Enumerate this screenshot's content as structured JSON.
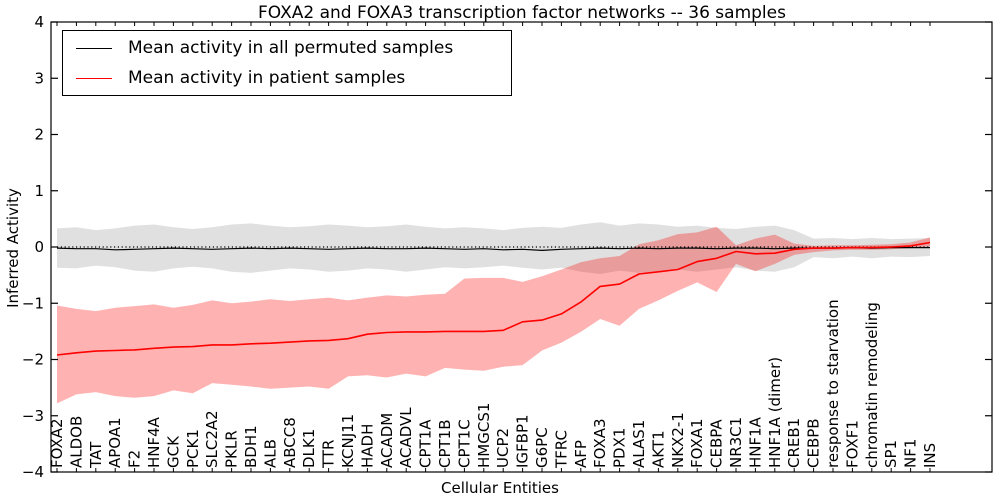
{
  "title": "FOXA2 and FOXA3 transcription factor networks -- 36 samples",
  "legend": {
    "entries": [
      {
        "label": "Mean activity in all permuted samples",
        "color": "#000000"
      },
      {
        "label": "Mean activity in patient samples",
        "color": "#ff0000"
      }
    ]
  },
  "chart_data": {
    "type": "line",
    "title": "FOXA2 and FOXA3 transcription factor networks -- 36 samples",
    "xlabel": "Cellular Entities",
    "ylabel": "Inferred Activity",
    "ylim": [
      -4,
      4
    ],
    "yticks": [
      4,
      3,
      2,
      1,
      0,
      -1,
      -2,
      -3,
      -4
    ],
    "grid": false,
    "legend_position": "upper left",
    "x_tick_label_rotation": 90,
    "categories": [
      "FOXA2",
      "ALDOB",
      "TAT",
      "APOA1",
      "F2",
      "HNF4A",
      "GCK",
      "PCK1",
      "SLC2A2",
      "PKLR",
      "BDH1",
      "ALB",
      "ABCC8",
      "DLK1",
      "TTR",
      "KCNJ11",
      "HADH",
      "ACADM",
      "ACADVL",
      "CPT1A",
      "CPT1B",
      "CPT1C",
      "HMGCS1",
      "UCP2",
      "IGFBP1",
      "G6PC",
      "TFRC",
      "AFP",
      "FOXA3",
      "PDX1",
      "ALAS1",
      "AKT1",
      "NKX2-1",
      "FOXA1",
      "CEBPA",
      "NR3C1",
      "HNF1A",
      "HNF1A (dimer)",
      "CREB1",
      "CEBPB",
      "response to starvation",
      "FOXF1",
      "chromatin remodeling",
      "SP1",
      "NF1",
      "INS"
    ],
    "zero_line": {
      "value": 0,
      "style": "dotted",
      "color": "#000000"
    },
    "series": [
      {
        "name": "Mean activity in all permuted samples",
        "color": "#000000",
        "style": "solid",
        "values": [
          -0.02,
          -0.03,
          -0.03,
          -0.05,
          -0.04,
          -0.03,
          -0.02,
          -0.03,
          -0.04,
          -0.03,
          -0.02,
          -0.03,
          -0.02,
          -0.03,
          -0.04,
          -0.03,
          -0.02,
          -0.03,
          -0.03,
          -0.02,
          -0.03,
          -0.04,
          -0.03,
          -0.05,
          -0.04,
          -0.06,
          -0.04,
          -0.03,
          -0.02,
          -0.03,
          -0.02,
          -0.03,
          -0.02,
          -0.02,
          -0.03,
          -0.02,
          -0.02,
          -0.03,
          -0.02,
          -0.02,
          -0.02,
          -0.01,
          -0.02,
          -0.01,
          -0.01,
          -0.01
        ]
      },
      {
        "name": "Mean activity in patient samples",
        "color": "#ff0000",
        "style": "solid",
        "values": [
          -1.92,
          -1.88,
          -1.85,
          -1.84,
          -1.83,
          -1.8,
          -1.78,
          -1.77,
          -1.74,
          -1.74,
          -1.72,
          -1.71,
          -1.69,
          -1.67,
          -1.66,
          -1.63,
          -1.55,
          -1.52,
          -1.51,
          -1.51,
          -1.5,
          -1.5,
          -1.5,
          -1.48,
          -1.33,
          -1.3,
          -1.19,
          -0.98,
          -0.7,
          -0.66,
          -0.48,
          -0.44,
          -0.4,
          -0.26,
          -0.2,
          -0.08,
          -0.12,
          -0.11,
          -0.04,
          -0.02,
          -0.02,
          -0.01,
          -0.01,
          0.0,
          0.02,
          0.08
        ]
      }
    ],
    "bands": [
      {
        "name": "permuted samples band",
        "fill": "rgba(0,0,0,0.12)",
        "upper": [
          0.33,
          0.35,
          0.3,
          0.33,
          0.38,
          0.4,
          0.35,
          0.32,
          0.35,
          0.4,
          0.42,
          0.38,
          0.35,
          0.37,
          0.4,
          0.38,
          0.35,
          0.37,
          0.4,
          0.36,
          0.33,
          0.35,
          0.33,
          0.3,
          0.34,
          0.36,
          0.34,
          0.4,
          0.44,
          0.38,
          0.42,
          0.4,
          0.36,
          0.38,
          0.34,
          0.32,
          0.36,
          0.38,
          0.3,
          0.15,
          0.16,
          0.14,
          0.16,
          0.14,
          0.15,
          0.16
        ],
        "lower": [
          -0.37,
          -0.38,
          -0.33,
          -0.36,
          -0.42,
          -0.44,
          -0.38,
          -0.35,
          -0.38,
          -0.44,
          -0.46,
          -0.42,
          -0.38,
          -0.4,
          -0.44,
          -0.42,
          -0.38,
          -0.4,
          -0.44,
          -0.4,
          -0.36,
          -0.38,
          -0.36,
          -0.33,
          -0.37,
          -0.4,
          -0.37,
          -0.44,
          -0.48,
          -0.42,
          -0.46,
          -0.44,
          -0.4,
          -0.44,
          -0.4,
          -0.36,
          -0.42,
          -0.44,
          -0.36,
          -0.18,
          -0.2,
          -0.17,
          -0.2,
          -0.17,
          -0.18,
          -0.16
        ]
      },
      {
        "name": "patient samples band",
        "fill": "rgba(255,0,0,0.3)",
        "upper": [
          -1.04,
          -1.1,
          -1.14,
          -1.08,
          -1.05,
          -1.02,
          -1.08,
          -1.03,
          -0.95,
          -1.0,
          -0.97,
          -0.93,
          -0.96,
          -0.93,
          -0.9,
          -0.95,
          -0.9,
          -0.86,
          -0.88,
          -0.85,
          -0.83,
          -0.56,
          -0.55,
          -0.55,
          -0.62,
          -0.52,
          -0.4,
          -0.27,
          -0.2,
          -0.16,
          0.05,
          0.12,
          0.23,
          0.26,
          0.36,
          0.03,
          0.15,
          0.22,
          0.06,
          0.02,
          0.03,
          0.03,
          0.04,
          0.05,
          0.08,
          0.17
        ],
        "lower": [
          -2.78,
          -2.62,
          -2.58,
          -2.65,
          -2.68,
          -2.65,
          -2.55,
          -2.6,
          -2.42,
          -2.45,
          -2.48,
          -2.52,
          -2.5,
          -2.48,
          -2.52,
          -2.3,
          -2.28,
          -2.32,
          -2.25,
          -2.3,
          -2.15,
          -2.18,
          -2.2,
          -2.13,
          -2.1,
          -1.84,
          -1.7,
          -1.51,
          -1.28,
          -1.4,
          -1.1,
          -0.95,
          -0.78,
          -0.63,
          -0.8,
          -0.3,
          -0.43,
          -0.3,
          -0.14,
          -0.09,
          -0.06,
          -0.05,
          -0.05,
          -0.04,
          -0.02,
          0.01
        ]
      }
    ]
  }
}
